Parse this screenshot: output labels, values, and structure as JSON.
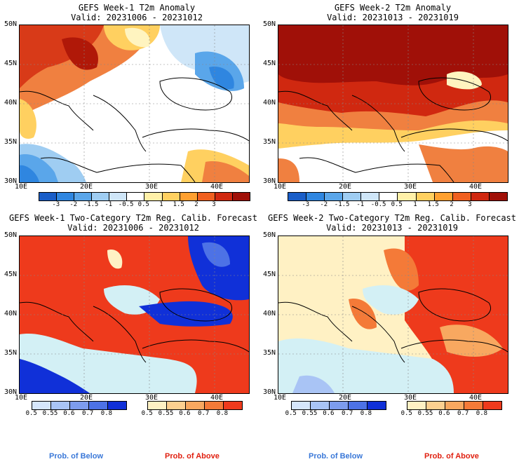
{
  "panels": [
    {
      "id": "p1",
      "title": "GEFS Week-1 T2m Anomaly",
      "valid": "Valid: 20231006 - 20231012"
    },
    {
      "id": "p2",
      "title": "GEFS Week-2 T2m Anomaly",
      "valid": "Valid: 20231013 - 20231019"
    },
    {
      "id": "p3",
      "title": "GEFS Week-1 Two-Category T2m Reg. Calib. Forecast",
      "valid": "Valid: 20231006 - 20231012"
    },
    {
      "id": "p4",
      "title": "GEFS Week-2 Two-Category T2m Reg. Calib. Forecast",
      "valid": "Valid: 20231013 - 20231019"
    }
  ],
  "lat_labels": [
    "50N",
    "45N",
    "40N",
    "35N",
    "30N"
  ],
  "lon_labels": [
    "10E",
    "20E",
    "30E",
    "40E"
  ],
  "anomaly_colorbar": {
    "labels": [
      "-3",
      "-2",
      "-1.5",
      "-1",
      "-0.5",
      "0.5",
      "1",
      "1.5",
      "2",
      "3"
    ],
    "colors": [
      "#1a5ec8",
      "#2f86e0",
      "#5aa6ea",
      "#9fcdf2",
      "#cfe6f8",
      "#ffffff",
      "#fff0a8",
      "#ffd060",
      "#ffa030",
      "#f06020",
      "#d02810",
      "#a01008"
    ]
  },
  "prob_below": {
    "labels": [
      "0.5",
      "0.55",
      "0.6",
      "0.7",
      "0.8"
    ],
    "colors": [
      "#d6e6fb",
      "#a9c4f5",
      "#7d9cee",
      "#4d72e6",
      "#1030d8"
    ],
    "caption": "Prob. of Below"
  },
  "prob_above": {
    "labels": [
      "0.5",
      "0.55",
      "0.6",
      "0.7",
      "0.8"
    ],
    "colors": [
      "#fff1c4",
      "#fdd090",
      "#f8a860",
      "#f47a38",
      "#ee3a1c"
    ],
    "caption": "Prob. of Above"
  },
  "sea_color": "#d3f0f5"
}
